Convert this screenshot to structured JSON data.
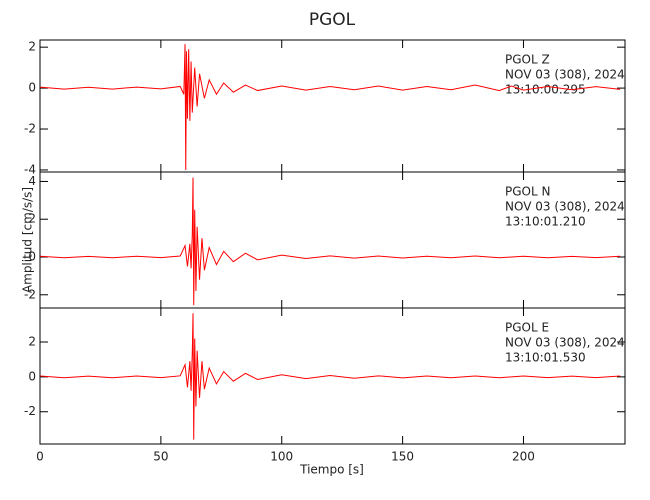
{
  "chart_data": [
    {
      "type": "line",
      "title": "PGOL",
      "annotation": [
        "PGOL   Z",
        "NOV 03 (308), 2024",
        "13:10:00.295"
      ],
      "x": [
        0,
        10,
        20,
        30,
        40,
        50,
        58,
        59.5,
        60,
        60.3,
        60.6,
        61,
        61.5,
        62,
        62.5,
        63,
        64,
        65,
        66,
        68,
        70,
        73,
        76,
        80,
        85,
        90,
        100,
        110,
        120,
        130,
        140,
        150,
        160,
        170,
        180,
        190,
        195,
        200,
        210,
        220,
        230,
        240
      ],
      "values": [
        0.05,
        -0.05,
        0.04,
        -0.05,
        0.05,
        -0.04,
        0.08,
        -0.3,
        2.15,
        -4.0,
        1.8,
        -1.5,
        1.9,
        -1.6,
        1.3,
        -1.2,
        1.0,
        -0.9,
        0.7,
        -0.5,
        0.4,
        -0.3,
        0.25,
        -0.2,
        0.15,
        -0.12,
        0.1,
        -0.1,
        0.08,
        -0.08,
        0.1,
        -0.1,
        0.08,
        -0.08,
        0.15,
        -0.12,
        0.1,
        -0.1,
        0.08,
        -0.08,
        0.07,
        -0.06
      ],
      "color": "#ff0000",
      "xlim": [
        0,
        242
      ],
      "xticks": [
        0,
        50,
        100,
        150,
        200
      ],
      "ylim": [
        -4.1,
        2.35
      ],
      "yticks": [
        -4,
        -2,
        0,
        2
      ]
    },
    {
      "type": "line",
      "ylabel": "Amplitud [cm/s/s]",
      "annotation": [
        "PGOL   N",
        "NOV 03 (308), 2024",
        "13:10:01.210"
      ],
      "x": [
        0,
        10,
        20,
        30,
        40,
        50,
        58,
        60,
        61,
        62,
        62.5,
        63,
        63.3,
        63.6,
        64,
        64.5,
        65,
        66,
        67,
        68,
        70,
        73,
        76,
        80,
        85,
        90,
        100,
        110,
        120,
        130,
        140,
        150,
        160,
        170,
        180,
        190,
        200,
        210,
        220,
        230,
        240
      ],
      "values": [
        0.04,
        -0.04,
        0.03,
        -0.04,
        0.04,
        -0.03,
        0.05,
        0.6,
        -0.5,
        0.7,
        -0.6,
        1.2,
        4.2,
        -2.55,
        2.5,
        -1.8,
        1.6,
        -1.2,
        1.0,
        -0.7,
        0.5,
        -0.4,
        0.3,
        -0.25,
        0.2,
        -0.15,
        0.1,
        -0.08,
        0.06,
        -0.06,
        0.05,
        -0.05,
        0.04,
        -0.04,
        0.05,
        -0.04,
        0.04,
        -0.04,
        0.03,
        -0.03,
        0.04
      ],
      "color": "#ff0000",
      "xlim": [
        0,
        242
      ],
      "xticks": [
        0,
        50,
        100,
        150,
        200
      ],
      "ylim": [
        -2.7,
        4.5
      ],
      "yticks": [
        -2,
        0,
        2,
        4
      ]
    },
    {
      "type": "line",
      "xlabel": "Tiempo [s]",
      "annotation": [
        "PGOL   E",
        "NOV 03 (308), 2024",
        "13:10:01.530"
      ],
      "x": [
        0,
        10,
        20,
        30,
        40,
        50,
        58,
        60,
        61,
        62,
        62.5,
        63,
        63.3,
        63.6,
        64,
        64.5,
        65,
        66,
        67,
        68,
        70,
        73,
        76,
        80,
        85,
        90,
        100,
        110,
        120,
        130,
        140,
        150,
        160,
        170,
        180,
        190,
        200,
        210,
        220,
        230,
        240
      ],
      "values": [
        0.05,
        -0.05,
        0.04,
        -0.05,
        0.05,
        -0.04,
        0.06,
        0.7,
        -0.6,
        0.9,
        -0.8,
        1.4,
        3.65,
        -3.6,
        2.2,
        -1.7,
        1.5,
        -1.2,
        0.9,
        -0.7,
        0.5,
        -0.4,
        0.3,
        -0.25,
        0.2,
        -0.15,
        0.12,
        -0.1,
        0.08,
        -0.08,
        0.06,
        -0.06,
        0.05,
        -0.05,
        0.05,
        -0.05,
        0.05,
        -0.04,
        0.04,
        -0.04,
        0.05
      ],
      "color": "#ff0000",
      "xlim": [
        0,
        242
      ],
      "xticks": [
        0,
        50,
        100,
        150,
        200
      ],
      "ylim": [
        -3.85,
        3.95
      ],
      "yticks": [
        -2,
        0,
        2
      ]
    }
  ]
}
